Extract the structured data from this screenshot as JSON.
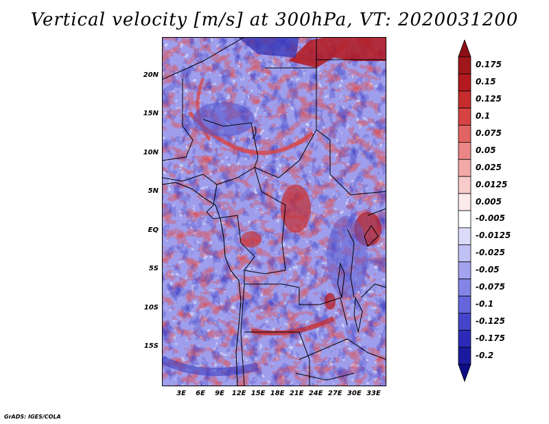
{
  "title": "Vertical velocity [m/s] at 300hPa, VT: 2020031200",
  "credit": "GrADS: IGES/COLA",
  "map": {
    "lon_range": [
      0,
      35
    ],
    "lat_range": [
      -20,
      25
    ],
    "lat_ticks": [
      {
        "lat": 20,
        "label": "20N"
      },
      {
        "lat": 15,
        "label": "15N"
      },
      {
        "lat": 10,
        "label": "10N"
      },
      {
        "lat": 5,
        "label": "5N"
      },
      {
        "lat": 0,
        "label": "EQ"
      },
      {
        "lat": -5,
        "label": "5S"
      },
      {
        "lat": -10,
        "label": "10S"
      },
      {
        "lat": -15,
        "label": "15S"
      }
    ],
    "lon_ticks": [
      {
        "lon": 3,
        "label": "3E"
      },
      {
        "lon": 6,
        "label": "6E"
      },
      {
        "lon": 9,
        "label": "9E"
      },
      {
        "lon": 12,
        "label": "12E"
      },
      {
        "lon": 15,
        "label": "15E"
      },
      {
        "lon": 18,
        "label": "18E"
      },
      {
        "lon": 21,
        "label": "21E"
      },
      {
        "lon": 24,
        "label": "24E"
      },
      {
        "lon": 27,
        "label": "27E"
      },
      {
        "lon": 30,
        "label": "30E"
      },
      {
        "lon": 33,
        "label": "33E"
      }
    ]
  },
  "colorbar": {
    "levels": [
      {
        "label": "0.175",
        "color": "#a0161b"
      },
      {
        "label": "0.15",
        "color": "#b3191e"
      },
      {
        "label": "0.125",
        "color": "#c62b2d"
      },
      {
        "label": "0.1",
        "color": "#d74343"
      },
      {
        "label": "0.075",
        "color": "#e26462"
      },
      {
        "label": "0.05",
        "color": "#ec8686"
      },
      {
        "label": "0.025",
        "color": "#f4a9a9"
      },
      {
        "label": "0.0125",
        "color": "#f9cccc"
      },
      {
        "label": "0.005",
        "color": "#fdeaea"
      },
      {
        "label": "-0.005",
        "color": "#ffffff"
      },
      {
        "label": "-0.0125",
        "color": "#dcdcfa"
      },
      {
        "label": "-0.025",
        "color": "#c0c0f5"
      },
      {
        "label": "-0.05",
        "color": "#a2a2ee"
      },
      {
        "label": "-0.075",
        "color": "#8484e6"
      },
      {
        "label": "-0.1",
        "color": "#6565dc"
      },
      {
        "label": "-0.125",
        "color": "#4545cc"
      },
      {
        "label": "-0.175",
        "color": "#2b2bb8"
      },
      {
        "label": "-0.2",
        "color": "#1a1a9e"
      }
    ],
    "top_color": "#8b0f14",
    "bottom_color": "#0d0d88"
  }
}
